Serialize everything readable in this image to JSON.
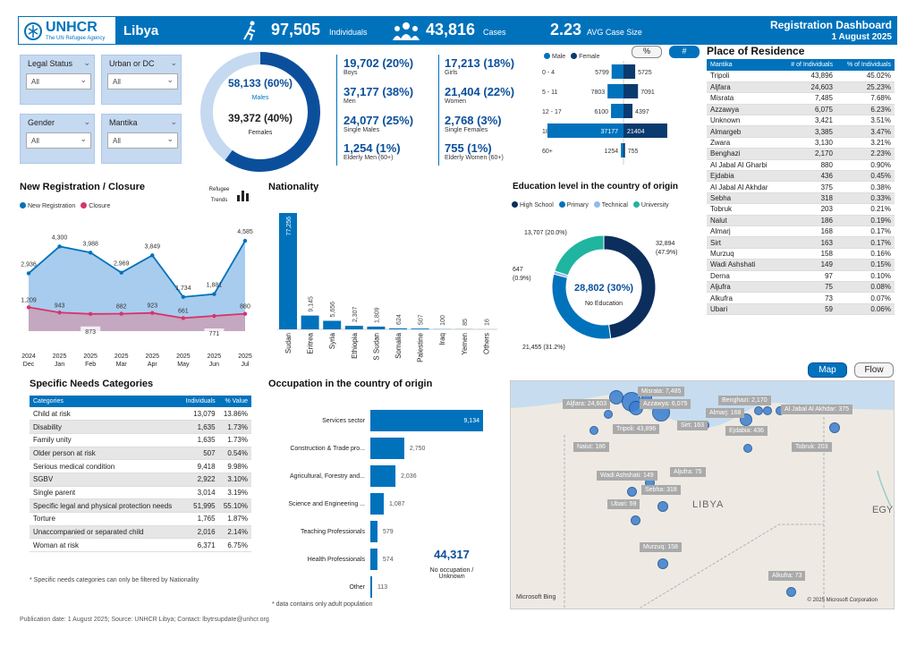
{
  "header": {
    "org": "UNHCR",
    "org_sub": "The UN Refugee Agency",
    "country": "Libya",
    "kpi_individuals": "97,505",
    "kpi_individuals_label": "Individuals",
    "kpi_cases": "43,816",
    "kpi_cases_label": "Cases",
    "kpi_avg": "2.23",
    "kpi_avg_label": "AVG Case Size",
    "title": "Registration Dashboard",
    "date": "1 August 2025"
  },
  "filters": [
    {
      "label": "Legal Status",
      "value": "All"
    },
    {
      "label": "Urban or DC",
      "value": "All"
    },
    {
      "label": "Gender",
      "value": "All"
    },
    {
      "label": "Mantika",
      "value": "All"
    }
  ],
  "donut": {
    "males": "58,133 (60%)",
    "males_label": "Males",
    "females": "39,372 (40%)",
    "females_label": "Females",
    "male_share": 0.6
  },
  "demographics": [
    {
      "value": "19,702 (20%)",
      "label": "Boys"
    },
    {
      "value": "17,213 (18%)",
      "label": "Girls"
    },
    {
      "value": "37,177 (38%)",
      "label": "Men"
    },
    {
      "value": "21,404 (22%)",
      "label": "Women"
    },
    {
      "value": "24,077 (25%)",
      "label": "Single Males"
    },
    {
      "value": "2,768 (3%)",
      "label": "Single Females"
    },
    {
      "value": "1,254 (1%)",
      "label": "Elderly Men (60+)"
    },
    {
      "value": "755 (1%)",
      "label": "Elderly Women (60+)"
    }
  ],
  "pyramid": {
    "legend_male": "Male",
    "legend_female": "Female",
    "btn_pct": "%",
    "btn_num": "#",
    "groups": [
      {
        "age": "0 - 4",
        "male": 5799,
        "female": 5725
      },
      {
        "age": "5 - 11",
        "male": 7803,
        "female": 7091
      },
      {
        "age": "12 - 17",
        "male": 6100,
        "female": 4397
      },
      {
        "age": "18 - 59",
        "male": 37177,
        "female": 21404
      },
      {
        "age": "60+",
        "male": 1254,
        "female": 755
      }
    ]
  },
  "residence": {
    "title": "Place of Residence",
    "col1": "Mantika",
    "col2": "# of Individuals",
    "col3": "% of Individuals",
    "rows": [
      [
        "Tripoli",
        "43,896",
        "45.02%"
      ],
      [
        "Aljfara",
        "24,603",
        "25.23%"
      ],
      [
        "Misrata",
        "7,485",
        "7.68%"
      ],
      [
        "Azzawya",
        "6,075",
        "6.23%"
      ],
      [
        "Unknown",
        "3,421",
        "3.51%"
      ],
      [
        "Almargeb",
        "3,385",
        "3.47%"
      ],
      [
        "Zwara",
        "3,130",
        "3.21%"
      ],
      [
        "Benghazi",
        "2,170",
        "2.23%"
      ],
      [
        "Al Jabal Al Gharbi",
        "880",
        "0.90%"
      ],
      [
        "Ejdabia",
        "436",
        "0.45%"
      ],
      [
        "Al Jabal Al Akhdar",
        "375",
        "0.38%"
      ],
      [
        "Sebha",
        "318",
        "0.33%"
      ],
      [
        "Tobruk",
        "203",
        "0.21%"
      ],
      [
        "Nalut",
        "186",
        "0.19%"
      ],
      [
        "Almarj",
        "168",
        "0.17%"
      ],
      [
        "Sirt",
        "163",
        "0.17%"
      ],
      [
        "Murzuq",
        "158",
        "0.16%"
      ],
      [
        "Wadi Ashshati",
        "149",
        "0.15%"
      ],
      [
        "Derna",
        "97",
        "0.10%"
      ],
      [
        "Aljufra",
        "75",
        "0.08%"
      ],
      [
        "Alkufra",
        "73",
        "0.07%"
      ],
      [
        "Ubari",
        "59",
        "0.06%"
      ]
    ]
  },
  "trend": {
    "title": "New Registration / Closure",
    "legend_new": "New Registration",
    "legend_closure": "Closure",
    "refugee_trends": "Refugee Trends"
  },
  "nationality": {
    "title": "Nationality"
  },
  "education": {
    "title": "Education level in the country of origin",
    "center_value": "28,802 (30%)",
    "center_label": "No Education",
    "legend": [
      "High School",
      "Primary",
      "Technical",
      "University"
    ],
    "labels": {
      "hs": "32,894 (47.9%)",
      "pr": "21,455 (31.2%)",
      "tech": "647 (0.9%)",
      "uni": "13,707 (20.0%)"
    }
  },
  "needs": {
    "title": "Specific Needs Categories",
    "col1": "Categories",
    "col2": "Individuals",
    "col3": "% Value",
    "rows": [
      [
        "Child at risk",
        "13,079",
        "13.86%"
      ],
      [
        "Disability",
        "1,635",
        "1.73%"
      ],
      [
        "Family unity",
        "1,635",
        "1.73%"
      ],
      [
        "Older person at risk",
        "507",
        "0.54%"
      ],
      [
        "Serious medical condition",
        "9,418",
        "9.98%"
      ],
      [
        "SGBV",
        "2,922",
        "3.10%"
      ],
      [
        "Single parent",
        "3,014",
        "3.19%"
      ],
      [
        "Specific legal and physical protection needs",
        "51,995",
        "55.10%"
      ],
      [
        "Torture",
        "1,765",
        "1.87%"
      ],
      [
        "Unaccompanied or separated child",
        "2,016",
        "2.14%"
      ],
      [
        "Woman at risk",
        "6,371",
        "6.75%"
      ]
    ],
    "note": "* Specific needs categories can only be filtered by Nationality"
  },
  "occupation": {
    "title": "Occupation in the country of origin",
    "no_occ_value": "44,317",
    "no_occ_label": "No occupation / Unknown",
    "note": "* data contains only adult population"
  },
  "map": {
    "btn_map": "Map",
    "btn_flow": "Flow",
    "country": "LIBYA",
    "edge": "EGY",
    "credit": "© 2025 Microsoft Corporation",
    "bing": "Microsoft Bing",
    "labels": [
      "Misrata: 7,485",
      "Aljfara: 24,603",
      "Azzawya: 6,075",
      "Benghazi: 2,170",
      "Almarj: 168",
      "Al Jabal Al Akhdar: 375",
      "Ejdabia: 436",
      "Tripoli: 43,896",
      "Sirt: 163",
      "Tobruk: 203",
      "Nalut: 186",
      "Wadi Ashshati: 149",
      "Aljufra: 75",
      "Sebha: 318",
      "Ubari: 59",
      "Murzuq: 158",
      "Alkufra: 73"
    ]
  },
  "footer": "Publication date: 1 August 2025; Source: UNHCR Libya; Contact: lbytrsupdate@unhcr.org",
  "chart_data": [
    {
      "type": "area",
      "title": "New Registration / Closure",
      "categories": [
        "2024 Dec",
        "2025 Jan",
        "2025 Feb",
        "2025 Mar",
        "2025 Apr",
        "2025 May",
        "2025 Jun",
        "2025 Jul"
      ],
      "series": [
        {
          "name": "New Registration",
          "values": [
            2936,
            4300,
            3988,
            2969,
            3849,
            1734,
            1881,
            4585
          ]
        },
        {
          "name": "Closure",
          "values": [
            1209,
            943,
            873,
            882,
            923,
            661,
            771,
            880
          ]
        }
      ]
    },
    {
      "type": "bar",
      "title": "Nationality",
      "categories": [
        "Sudan",
        "Eritrea",
        "Syria",
        "Ethiopia",
        "S Sudan",
        "Somalia",
        "Palestine",
        "Iraq",
        "Yemen",
        "Others"
      ],
      "values": [
        77256,
        9145,
        5656,
        2307,
        1809,
        624,
        507,
        100,
        85,
        16
      ]
    },
    {
      "type": "bar",
      "title": "Occupation in the country of origin",
      "categories": [
        "Services sector",
        "Construction & Trade pro...",
        "Agricultural, Forestry and...",
        "Science and Engineering ...",
        "Teaching Professionals",
        "Health Professionals",
        "Other"
      ],
      "values": [
        9134,
        2750,
        2036,
        1087,
        579,
        574,
        113
      ]
    },
    {
      "type": "pie",
      "title": "Education level in the country of origin",
      "categories": [
        "High School",
        "Primary",
        "Technical",
        "University"
      ],
      "values": [
        32894,
        21455,
        647,
        13707
      ]
    }
  ]
}
